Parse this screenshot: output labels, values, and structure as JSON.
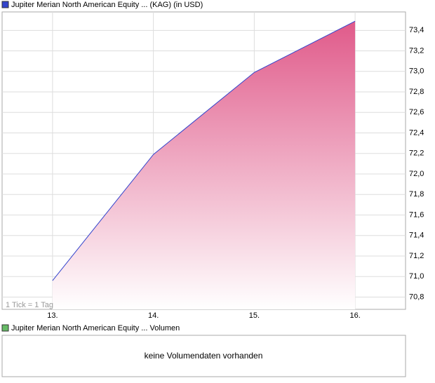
{
  "chart_data": {
    "type": "area",
    "title": "Jupiter Merian North American Equity ... (KAG) (in USD)",
    "note": "1 Tick = 1 Tag",
    "x": [
      13,
      14,
      15,
      15.28,
      16
    ],
    "series": [
      {
        "name": "Jupiter Merian North American Equity ... (KAG) (in USD)",
        "color": "#3344cc",
        "fill": "#e05a8a",
        "values": [
          70.96,
          72.19,
          72.99,
          73.13,
          73.49
        ]
      }
    ],
    "xlim": [
      12.5,
      16.5
    ],
    "xticks": [
      {
        "value": 13,
        "label": "13."
      },
      {
        "value": 14,
        "label": "14."
      },
      {
        "value": 15,
        "label": "15."
      },
      {
        "value": 16,
        "label": "16."
      }
    ],
    "ylim": [
      70.68,
      73.58
    ],
    "yticks": [
      {
        "value": 70.8,
        "label": "70,8"
      },
      {
        "value": 71.0,
        "label": "71,0"
      },
      {
        "value": 71.2,
        "label": "71,2"
      },
      {
        "value": 71.4,
        "label": "71,4"
      },
      {
        "value": 71.6,
        "label": "71,6"
      },
      {
        "value": 71.8,
        "label": "71,8"
      },
      {
        "value": 72.0,
        "label": "72,0"
      },
      {
        "value": 72.2,
        "label": "72,2"
      },
      {
        "value": 72.4,
        "label": "72,4"
      },
      {
        "value": 72.6,
        "label": "72,6"
      },
      {
        "value": 72.8,
        "label": "72,8"
      },
      {
        "value": 73.0,
        "label": "73,0"
      },
      {
        "value": 73.2,
        "label": "73,2"
      },
      {
        "value": 73.4,
        "label": "73,4"
      }
    ],
    "grid": true
  },
  "volume_panel": {
    "title": "Jupiter Merian North American Equity ... Volumen",
    "color": "#66bb66",
    "message": "keine Volumendaten vorhanden"
  }
}
